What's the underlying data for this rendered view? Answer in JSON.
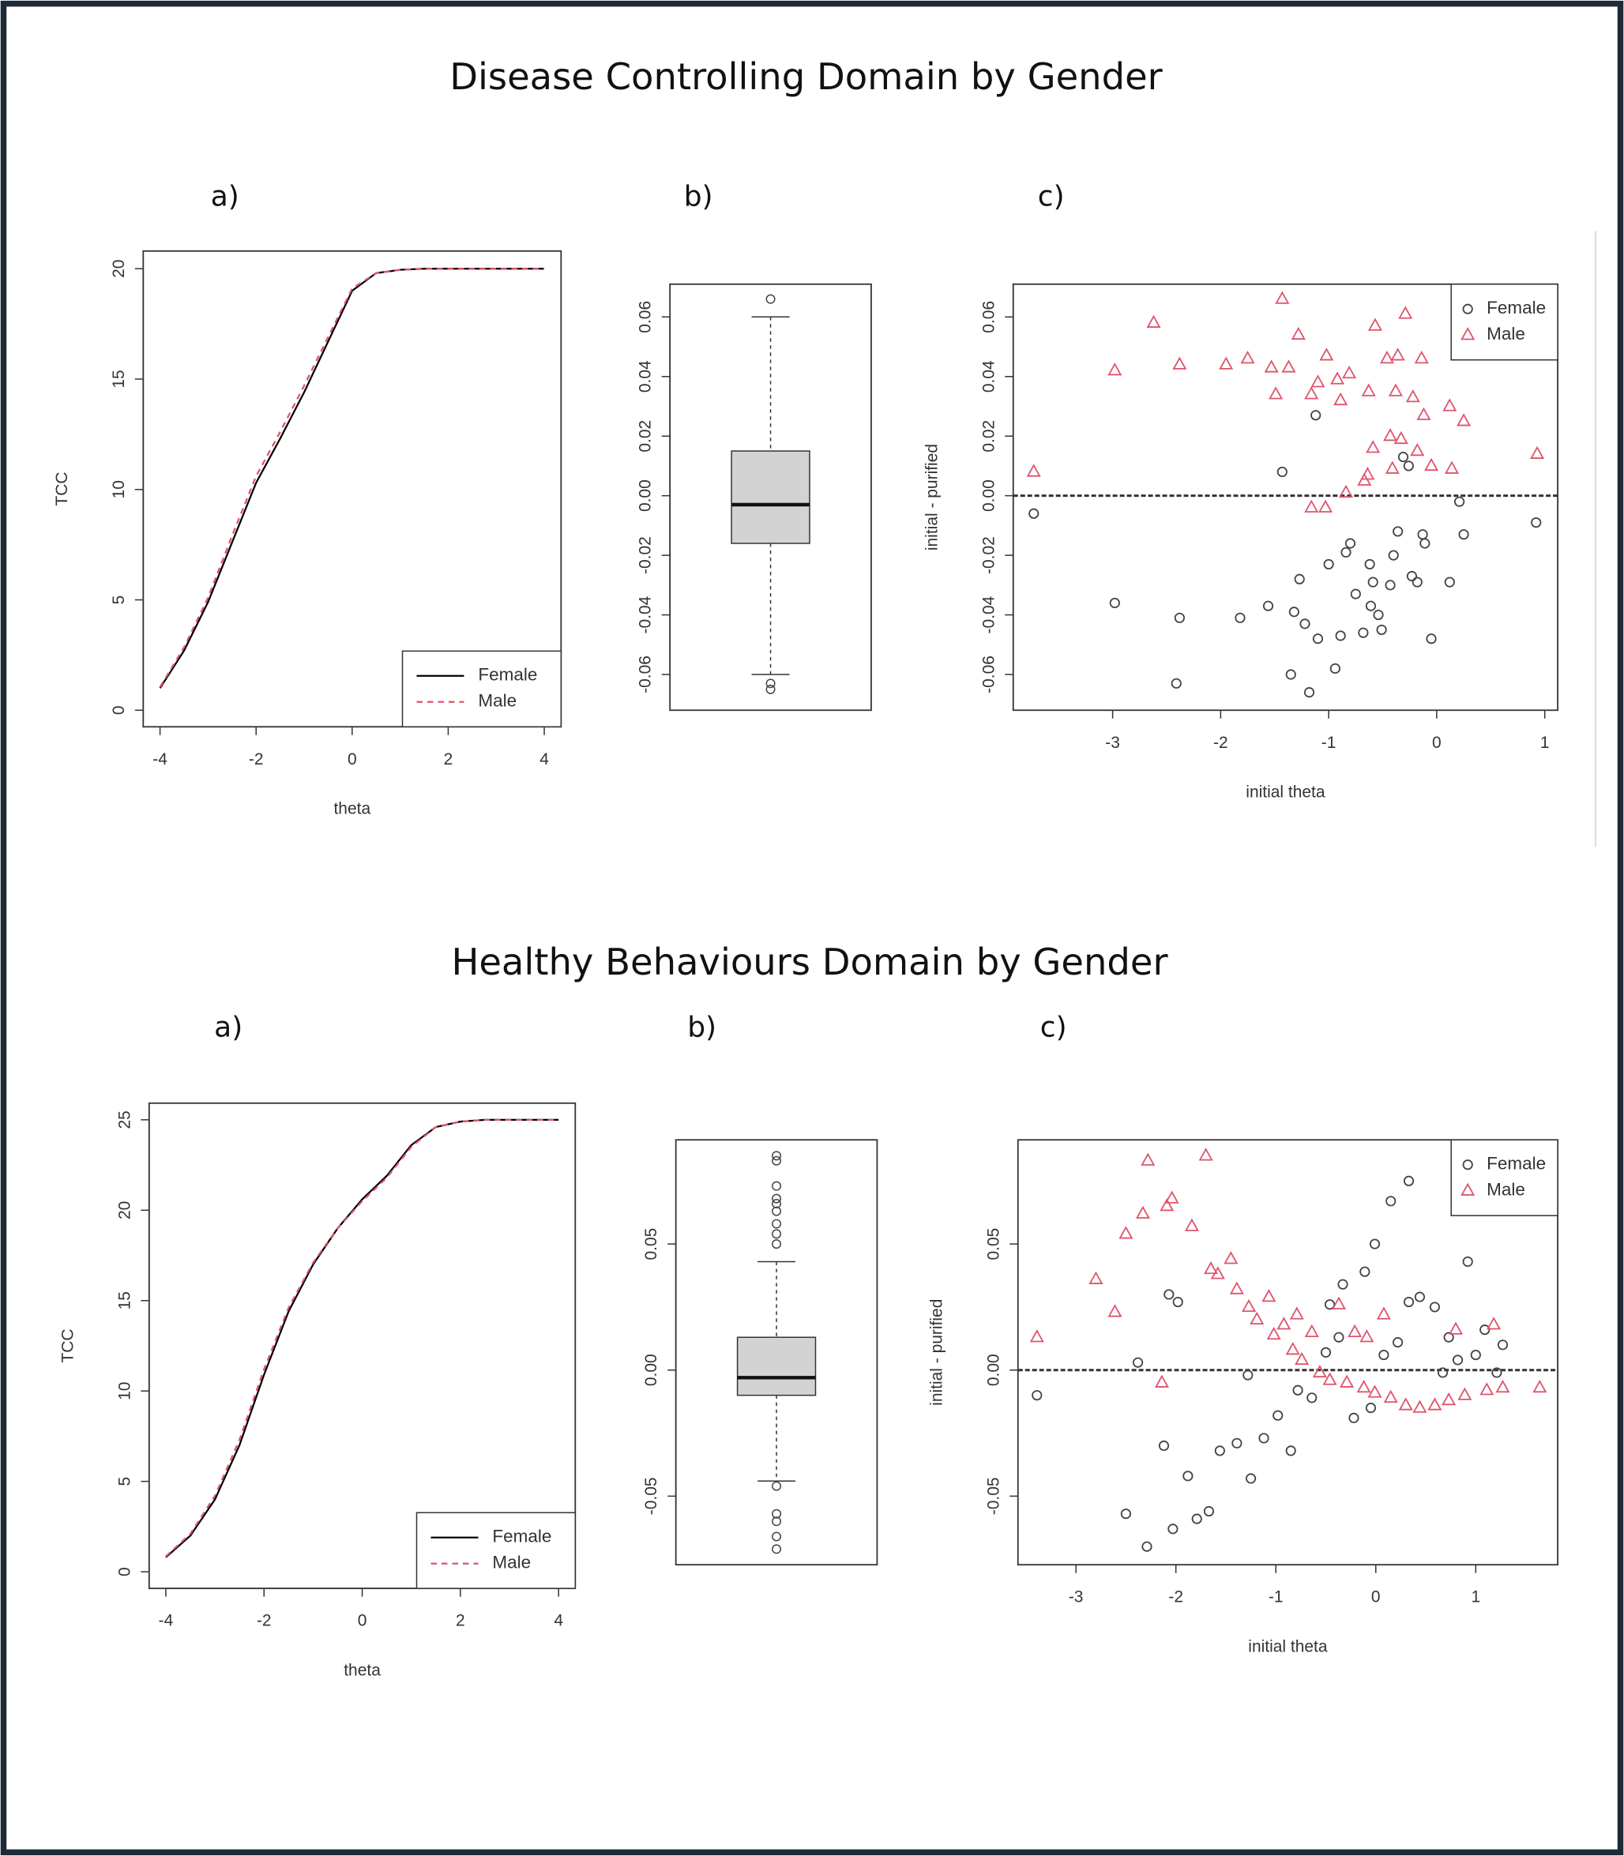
{
  "figure_titles": [
    "Disease Controlling Domain by Gender",
    "Healthy Behaviours Domain by Gender"
  ],
  "chart_data": [
    {
      "type": "line",
      "title": "a)",
      "xlabel": "theta",
      "ylabel": "TCC",
      "x": [
        -4,
        -3.5,
        -3,
        -2.5,
        -2,
        -1.5,
        -1,
        -0.5,
        0,
        0.5,
        1,
        1.5,
        2,
        2.5,
        3,
        3.5,
        4
      ],
      "series": [
        {
          "name": "Female",
          "color": "#000000",
          "dashed": false,
          "values": [
            1,
            2.7,
            4.9,
            7.6,
            10.3,
            12.3,
            14.4,
            16.7,
            19,
            19.8,
            19.95,
            20,
            20,
            20,
            20,
            20,
            20
          ]
        },
        {
          "name": "Male",
          "color": "#df536b",
          "dashed": true,
          "values": [
            1.05,
            2.85,
            5.1,
            7.9,
            10.6,
            12.6,
            14.7,
            16.9,
            19.1,
            19.8,
            19.95,
            20,
            20,
            20,
            20,
            20,
            20
          ]
        }
      ],
      "xlim": [
        -4.35,
        4.35
      ],
      "xticks": [
        -4,
        -2,
        0,
        2,
        4
      ],
      "ylim": [
        -0.75,
        20.8
      ],
      "yticks": [
        0,
        5,
        10,
        15,
        20
      ],
      "legend": "bottomright"
    },
    {
      "type": "box",
      "title": "b)",
      "color": "#d3d3d3",
      "whisker_low": -0.06,
      "q1": -0.016,
      "median": -0.003,
      "q3": 0.015,
      "whisker_high": 0.06,
      "outliers": [
        0.066,
        -0.063,
        -0.065
      ],
      "ylim": [
        -0.072,
        0.071
      ],
      "yticks": [
        -0.06,
        -0.04,
        -0.02,
        {
          "value": 0,
          "label": "0.00"
        },
        0.02,
        0.04,
        0.06
      ]
    },
    {
      "type": "scatter",
      "title": "c)",
      "xlabel": "initial theta",
      "ylabel": "initial - purified",
      "hline": 0,
      "series": [
        {
          "name": "Female",
          "color": "#444444",
          "marker": "circle",
          "x": [
            -3.73,
            -2.98,
            -2.38,
            -2.41,
            -1.82,
            -1.56,
            -1.43,
            -1.12,
            -1.35,
            -1.27,
            -1.32,
            -1.22,
            -1.18,
            -1.1,
            -1,
            -0.94,
            -0.89,
            -0.84,
            -0.8,
            -0.75,
            -0.68,
            -0.61,
            -0.59,
            -0.51,
            -0.43,
            -0.4,
            -0.36,
            -0.23,
            -0.18,
            -0.13,
            -0.11,
            -0.05,
            0.12,
            0.21,
            0.25,
            0.92,
            -0.26,
            -0.31,
            -0.62,
            -0.54
          ],
          "values": [
            -0.006,
            -0.036,
            -0.041,
            -0.063,
            -0.041,
            -0.037,
            0.008,
            0.027,
            -0.06,
            -0.028,
            -0.039,
            -0.043,
            -0.066,
            -0.048,
            -0.023,
            -0.058,
            -0.047,
            -0.019,
            -0.016,
            -0.033,
            -0.046,
            -0.037,
            -0.029,
            -0.045,
            -0.03,
            -0.02,
            -0.012,
            -0.027,
            -0.029,
            -0.013,
            -0.016,
            -0.048,
            -0.029,
            -0.002,
            -0.013,
            -0.009,
            0.01,
            0.013,
            -0.023,
            -0.04
          ]
        },
        {
          "name": "Male",
          "color": "#df536b",
          "marker": "triangle",
          "x": [
            -3.73,
            -2.98,
            -2.62,
            -2.38,
            -1.95,
            -1.75,
            -1.53,
            -1.43,
            -1.37,
            -1.28,
            -1.49,
            -1.16,
            -1.1,
            -1.02,
            -0.92,
            -0.81,
            -0.89,
            -0.63,
            -0.57,
            -0.46,
            -0.38,
            -0.29,
            -0.36,
            -0.22,
            -0.14,
            -0.12,
            0.12,
            0.19,
            0.25,
            0.93,
            -0.59,
            -0.43,
            -0.33,
            -0.18,
            -0.64,
            -0.41,
            -0.05,
            0.14,
            -1.16,
            -1.03,
            -0.84,
            -0.67
          ],
          "values": [
            0.008,
            0.042,
            0.058,
            0.044,
            0.044,
            0.046,
            0.043,
            0.066,
            0.043,
            0.054,
            0.034,
            0.034,
            0.038,
            0.047,
            0.039,
            0.041,
            0.032,
            0.035,
            0.057,
            0.046,
            0.035,
            0.061,
            0.047,
            0.033,
            0.046,
            0.027,
            0.03,
            0.047,
            0.025,
            0.014,
            0.016,
            0.02,
            0.019,
            0.015,
            0.007,
            0.009,
            0.01,
            0.009,
            -0.004,
            -0.004,
            0.001,
            0.005
          ]
        }
      ],
      "xlim": [
        -3.92,
        1.12
      ],
      "xticks": [
        -3,
        -2,
        -1,
        0,
        1
      ],
      "ylim": [
        -0.072,
        0.071
      ],
      "yticks": [
        -0.06,
        -0.04,
        -0.02,
        {
          "value": 0,
          "label": "0.00"
        },
        0.02,
        0.04,
        0.06
      ],
      "legend": "topright"
    },
    {
      "type": "line",
      "title": "a)",
      "xlabel": "theta",
      "ylabel": "TCC",
      "x": [
        -4,
        -3.5,
        -3,
        -2.5,
        -2,
        -1.5,
        -1,
        -0.5,
        0,
        0.5,
        1,
        1.5,
        2,
        2.5,
        3,
        3.5,
        4
      ],
      "series": [
        {
          "name": "Female",
          "color": "#000000",
          "dashed": false,
          "values": [
            0.8,
            2,
            4,
            7,
            10.9,
            14.4,
            17,
            19,
            20.6,
            21.9,
            23.6,
            24.6,
            24.9,
            25,
            25,
            25,
            25
          ]
        },
        {
          "name": "Male",
          "color": "#df536b",
          "dashed": true,
          "values": [
            0.85,
            2.1,
            4.2,
            7.3,
            11.2,
            14.6,
            17.1,
            19,
            20.5,
            21.8,
            23.5,
            24.6,
            24.9,
            25,
            25,
            25,
            25
          ]
        }
      ],
      "xlim": [
        -4.34,
        4.34
      ],
      "xticks": [
        -4,
        -2,
        0,
        2,
        4
      ],
      "ylim": [
        -0.92,
        25.92
      ],
      "yticks": [
        0,
        5,
        10,
        15,
        20,
        25
      ],
      "legend": "bottomright"
    },
    {
      "type": "box",
      "title": "b)",
      "color": "#d3d3d3",
      "whisker_low": -0.044,
      "q1": -0.01,
      "median": -0.003,
      "q3": 0.013,
      "whisker_high": 0.043,
      "outliers": [
        0.085,
        0.083,
        0.073,
        0.068,
        0.066,
        0.063,
        0.058,
        0.054,
        0.05,
        -0.046,
        -0.057,
        -0.06,
        -0.066,
        -0.071
      ],
      "ylim": [
        -0.0772,
        0.0913
      ],
      "yticks": [
        -0.05,
        {
          "value": 0,
          "label": "0.00"
        },
        0.05
      ]
    },
    {
      "type": "scatter",
      "title": "c)",
      "xlabel": "initial theta",
      "ylabel": "initial - purified",
      "hline": 0,
      "series": [
        {
          "name": "Female",
          "color": "#444444",
          "marker": "circle",
          "x": [
            -3.39,
            -2.38,
            -2.29,
            -2.5,
            -2.12,
            -2.03,
            -2.07,
            -1.98,
            -1.88,
            -1.79,
            -1.67,
            -1.56,
            -1.39,
            -1.25,
            -1.28,
            -1.12,
            -0.98,
            -0.85,
            -0.78,
            -0.64,
            -0.5,
            -0.46,
            -0.37,
            -0.33,
            -0.22,
            -0.11,
            -0.05,
            -0.01,
            0.08,
            0.15,
            0.22,
            0.33,
            0.33,
            0.44,
            0.59,
            0.67,
            0.73,
            0.92,
            1,
            1.09,
            1.21,
            1.27,
            0.82
          ],
          "values": [
            -0.01,
            0.003,
            -0.07,
            -0.057,
            -0.03,
            -0.063,
            0.03,
            0.027,
            -0.042,
            -0.059,
            -0.056,
            -0.032,
            -0.029,
            -0.043,
            -0.002,
            -0.027,
            -0.018,
            -0.032,
            -0.008,
            -0.011,
            0.007,
            0.026,
            0.013,
            0.034,
            -0.019,
            0.039,
            -0.015,
            0.05,
            0.006,
            0.067,
            0.011,
            0.075,
            0.027,
            0.029,
            0.025,
            -0.001,
            0.013,
            0.043,
            0.006,
            0.016,
            -0.001,
            0.01,
            0.004
          ]
        },
        {
          "name": "Male",
          "color": "#df536b",
          "marker": "triangle",
          "x": [
            -3.39,
            -2.8,
            -2.61,
            -2.5,
            -2.33,
            -2.28,
            -2.14,
            -2.09,
            -2.04,
            -1.84,
            -1.7,
            -1.65,
            -1.58,
            -1.45,
            -1.39,
            -1.27,
            -1.19,
            -1.07,
            -1.02,
            -0.92,
            -0.83,
            -0.74,
            -0.64,
            -0.56,
            -0.46,
            -0.37,
            -0.29,
            -0.21,
            -0.12,
            -0.01,
            0.15,
            0.3,
            0.44,
            0.59,
            0.73,
            0.8,
            0.89,
            1.11,
            1.18,
            1.27,
            1.64,
            -0.09,
            0.08,
            -0.79
          ],
          "values": [
            0.013,
            0.036,
            0.023,
            0.054,
            0.062,
            0.083,
            -0.005,
            0.065,
            0.068,
            0.057,
            0.085,
            0.04,
            0.038,
            0.044,
            0.032,
            0.025,
            0.02,
            0.029,
            0.014,
            0.018,
            0.008,
            0.004,
            0.015,
            -0.001,
            -0.004,
            0.026,
            -0.005,
            0.015,
            -0.007,
            -0.009,
            -0.011,
            -0.014,
            -0.015,
            -0.014,
            -0.012,
            0.016,
            -0.01,
            -0.008,
            0.018,
            -0.007,
            -0.007,
            0.013,
            0.022,
            0.022
          ]
        }
      ],
      "xlim": [
        -3.58,
        1.82
      ],
      "xticks": [
        -3,
        -2,
        -1,
        0,
        1
      ],
      "ylim": [
        -0.0772,
        0.0913
      ],
      "yticks": [
        -0.05,
        {
          "value": 0,
          "label": "0.00"
        },
        0.05
      ],
      "legend": "topright"
    }
  ]
}
